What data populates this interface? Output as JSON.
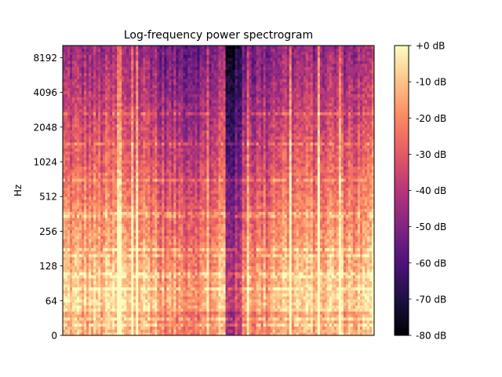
{
  "chart_data": {
    "type": "heatmap",
    "title": "Log-frequency power spectrogram",
    "xlabel": "",
    "ylabel": "Hz",
    "y_scale": "log2 (symlog near 0)",
    "y_ticks": [
      "0",
      "64",
      "128",
      "256",
      "512",
      "1024",
      "2048",
      "4096",
      "8192"
    ],
    "y_tick_values": [
      0,
      64,
      128,
      256,
      512,
      1024,
      2048,
      4096,
      8192
    ],
    "ylim_hz": [
      0,
      11025
    ],
    "colorbar": {
      "label": "dB",
      "range_db": [
        -80,
        0
      ],
      "ticks": [
        "+0 dB",
        "-10 dB",
        "-20 dB",
        "-30 dB",
        "-40 dB",
        "-50 dB",
        "-60 dB",
        "-70 dB",
        "-80 dB"
      ],
      "tick_values": [
        0,
        -10,
        -20,
        -30,
        -40,
        -50,
        -60,
        -70,
        -80
      ],
      "colormap": "magma",
      "colormap_stops": [
        "#000004",
        "#1c1044",
        "#4f127b",
        "#812581",
        "#b5367a",
        "#e55964",
        "#fb8761",
        "#fec287",
        "#fcfdbf"
      ]
    }
  }
}
